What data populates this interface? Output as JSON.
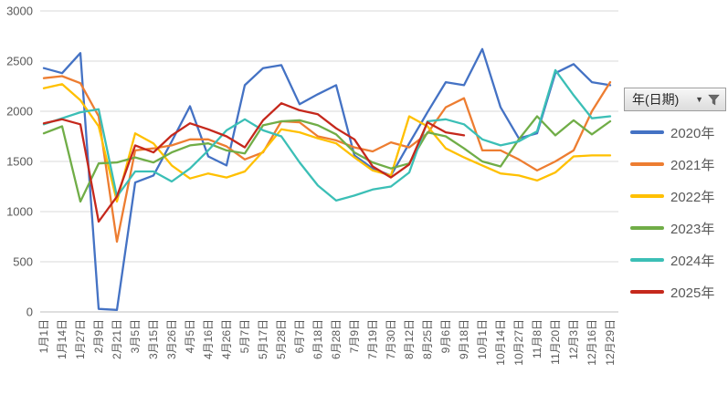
{
  "chart_data": {
    "type": "line",
    "title": "",
    "xlabel": "",
    "ylabel": "",
    "ylim": [
      0,
      3000
    ],
    "yticks": [
      0,
      500,
      1000,
      1500,
      2000,
      2500,
      3000
    ],
    "grid": true,
    "legend_position": "right",
    "categories": [
      "1月1日",
      "1月14日",
      "1月27日",
      "2月9日",
      "2月21日",
      "3月5日",
      "3月15日",
      "3月26日",
      "4月5日",
      "4月16日",
      "4月26日",
      "5月7日",
      "5月17日",
      "5月28日",
      "6月7日",
      "6月18日",
      "6月28日",
      "7月9日",
      "7月19日",
      "7月30日",
      "8月12日",
      "8月25日",
      "9月6日",
      "9月18日",
      "10月1日",
      "10月14日",
      "10月27日",
      "11月8日",
      "11月20日",
      "12月3日",
      "12月16日",
      "12月29日"
    ],
    "series": [
      {
        "name": "2020年",
        "color": "#4472C4",
        "values": [
          2430,
          2380,
          2580,
          30,
          20,
          1290,
          1360,
          1700,
          2050,
          1550,
          1460,
          2260,
          2430,
          2460,
          2070,
          2170,
          2260,
          1560,
          1430,
          1360,
          1680,
          1990,
          2290,
          2260,
          2620,
          2040,
          1730,
          1780,
          2380,
          2470,
          2290,
          2260
        ]
      },
      {
        "name": "2021年",
        "color": "#ED7D31",
        "values": [
          2330,
          2350,
          2280,
          1950,
          700,
          1610,
          1630,
          1660,
          1720,
          1720,
          1650,
          1520,
          1590,
          1900,
          1890,
          1750,
          1710,
          1640,
          1600,
          1690,
          1640,
          1780,
          2040,
          2130,
          1610,
          1610,
          1520,
          1410,
          1500,
          1610,
          2000,
          2290
        ]
      },
      {
        "name": "2022年",
        "color": "#FFC000",
        "values": [
          2230,
          2270,
          2110,
          1850,
          1100,
          1780,
          1680,
          1460,
          1330,
          1380,
          1340,
          1400,
          1600,
          1820,
          1790,
          1730,
          1680,
          1540,
          1410,
          1360,
          1950,
          1850,
          1630,
          1540,
          1460,
          1380,
          1360,
          1310,
          1390,
          1550,
          1560,
          1560
        ]
      },
      {
        "name": "2023年",
        "color": "#70AD47",
        "values": [
          1780,
          1850,
          1100,
          1480,
          1490,
          1540,
          1490,
          1590,
          1660,
          1680,
          1610,
          1580,
          1860,
          1900,
          1910,
          1860,
          1770,
          1590,
          1490,
          1430,
          1480,
          1790,
          1750,
          1630,
          1500,
          1450,
          1720,
          1950,
          1760,
          1910,
          1770,
          1900
        ]
      },
      {
        "name": "2024年",
        "color": "#3BBFB6",
        "values": [
          1870,
          1930,
          1990,
          2020,
          1150,
          1400,
          1400,
          1300,
          1430,
          1610,
          1810,
          1920,
          1810,
          1750,
          1490,
          1260,
          1110,
          1160,
          1220,
          1250,
          1390,
          1900,
          1920,
          1870,
          1720,
          1660,
          1700,
          1800,
          2410,
          2160,
          1930,
          1950
        ]
      },
      {
        "name": "2025年",
        "color": "#C5281C",
        "values": [
          1880,
          1920,
          1870,
          900,
          1150,
          1660,
          1590,
          1760,
          1880,
          1820,
          1750,
          1640,
          1910,
          2080,
          2010,
          1970,
          1830,
          1720,
          1450,
          1340,
          1470,
          1890,
          1790,
          1760
        ]
      }
    ]
  },
  "legend": {
    "field_button_label": "年(日期)",
    "dropdown_icon": "▼",
    "filter_icon": "funnel-icon",
    "entries": [
      "2020年",
      "2021年",
      "2022年",
      "2023年",
      "2024年",
      "2025年"
    ]
  },
  "style": {
    "axis_text_color": "#595959",
    "gridline_color": "#D9D9D9",
    "axis_line_color": "#BFBFBF"
  }
}
